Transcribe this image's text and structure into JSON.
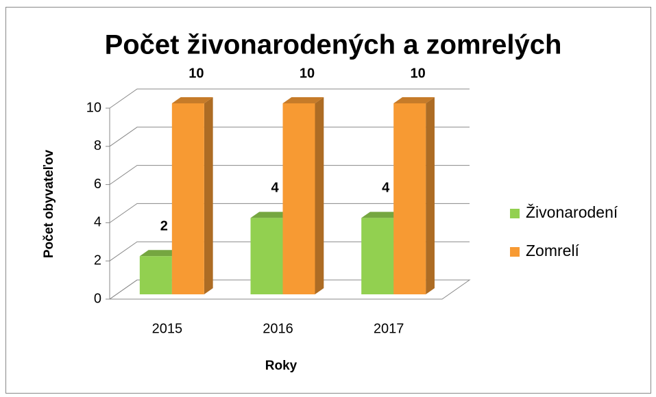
{
  "chart_data": {
    "type": "bar3d",
    "title": "Počet živonarodených a zomrelých",
    "x_label": "Roky",
    "y_label": "Počet obyvateľov",
    "categories": [
      "2015",
      "2016",
      "2017"
    ],
    "series": [
      {
        "name": "Živonarodení",
        "color": "#92d050",
        "values": [
          2,
          4,
          4
        ]
      },
      {
        "name": "Zomrelí",
        "color": "#f79a33",
        "values": [
          10,
          10,
          10
        ]
      }
    ],
    "ylim": [
      0,
      10
    ],
    "yticks": [
      0,
      2,
      4,
      6,
      8,
      10
    ],
    "grid": true,
    "legend": "right"
  }
}
